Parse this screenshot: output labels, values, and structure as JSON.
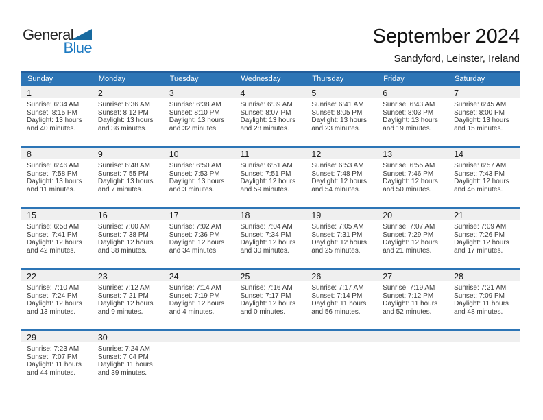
{
  "logo": {
    "general": "General",
    "blue": "Blue"
  },
  "title": "September 2024",
  "subtitle": "Sandyford, Leinster, Ireland",
  "colors": {
    "header_blue": "#2d75b6",
    "header_top_border": "#235e9c",
    "row_separator_blue": "#2d75b6",
    "day_band_gray": "#efefef",
    "logo_text_blue": "#1d7ac2",
    "logo_triangle_blue": "#17699f"
  },
  "weekday_headers": [
    "Sunday",
    "Monday",
    "Tuesday",
    "Wednesday",
    "Thursday",
    "Friday",
    "Saturday"
  ],
  "weeks": [
    [
      {
        "day": "1",
        "sunrise": "Sunrise: 6:34 AM",
        "sunset": "Sunset: 8:15 PM",
        "daylight1": "Daylight: 13 hours",
        "daylight2": "and 40 minutes."
      },
      {
        "day": "2",
        "sunrise": "Sunrise: 6:36 AM",
        "sunset": "Sunset: 8:12 PM",
        "daylight1": "Daylight: 13 hours",
        "daylight2": "and 36 minutes."
      },
      {
        "day": "3",
        "sunrise": "Sunrise: 6:38 AM",
        "sunset": "Sunset: 8:10 PM",
        "daylight1": "Daylight: 13 hours",
        "daylight2": "and 32 minutes."
      },
      {
        "day": "4",
        "sunrise": "Sunrise: 6:39 AM",
        "sunset": "Sunset: 8:07 PM",
        "daylight1": "Daylight: 13 hours",
        "daylight2": "and 28 minutes."
      },
      {
        "day": "5",
        "sunrise": "Sunrise: 6:41 AM",
        "sunset": "Sunset: 8:05 PM",
        "daylight1": "Daylight: 13 hours",
        "daylight2": "and 23 minutes."
      },
      {
        "day": "6",
        "sunrise": "Sunrise: 6:43 AM",
        "sunset": "Sunset: 8:03 PM",
        "daylight1": "Daylight: 13 hours",
        "daylight2": "and 19 minutes."
      },
      {
        "day": "7",
        "sunrise": "Sunrise: 6:45 AM",
        "sunset": "Sunset: 8:00 PM",
        "daylight1": "Daylight: 13 hours",
        "daylight2": "and 15 minutes."
      }
    ],
    [
      {
        "day": "8",
        "sunrise": "Sunrise: 6:46 AM",
        "sunset": "Sunset: 7:58 PM",
        "daylight1": "Daylight: 13 hours",
        "daylight2": "and 11 minutes."
      },
      {
        "day": "9",
        "sunrise": "Sunrise: 6:48 AM",
        "sunset": "Sunset: 7:55 PM",
        "daylight1": "Daylight: 13 hours",
        "daylight2": "and 7 minutes."
      },
      {
        "day": "10",
        "sunrise": "Sunrise: 6:50 AM",
        "sunset": "Sunset: 7:53 PM",
        "daylight1": "Daylight: 13 hours",
        "daylight2": "and 3 minutes."
      },
      {
        "day": "11",
        "sunrise": "Sunrise: 6:51 AM",
        "sunset": "Sunset: 7:51 PM",
        "daylight1": "Daylight: 12 hours",
        "daylight2": "and 59 minutes."
      },
      {
        "day": "12",
        "sunrise": "Sunrise: 6:53 AM",
        "sunset": "Sunset: 7:48 PM",
        "daylight1": "Daylight: 12 hours",
        "daylight2": "and 54 minutes."
      },
      {
        "day": "13",
        "sunrise": "Sunrise: 6:55 AM",
        "sunset": "Sunset: 7:46 PM",
        "daylight1": "Daylight: 12 hours",
        "daylight2": "and 50 minutes."
      },
      {
        "day": "14",
        "sunrise": "Sunrise: 6:57 AM",
        "sunset": "Sunset: 7:43 PM",
        "daylight1": "Daylight: 12 hours",
        "daylight2": "and 46 minutes."
      }
    ],
    [
      {
        "day": "15",
        "sunrise": "Sunrise: 6:58 AM",
        "sunset": "Sunset: 7:41 PM",
        "daylight1": "Daylight: 12 hours",
        "daylight2": "and 42 minutes."
      },
      {
        "day": "16",
        "sunrise": "Sunrise: 7:00 AM",
        "sunset": "Sunset: 7:38 PM",
        "daylight1": "Daylight: 12 hours",
        "daylight2": "and 38 minutes."
      },
      {
        "day": "17",
        "sunrise": "Sunrise: 7:02 AM",
        "sunset": "Sunset: 7:36 PM",
        "daylight1": "Daylight: 12 hours",
        "daylight2": "and 34 minutes."
      },
      {
        "day": "18",
        "sunrise": "Sunrise: 7:04 AM",
        "sunset": "Sunset: 7:34 PM",
        "daylight1": "Daylight: 12 hours",
        "daylight2": "and 30 minutes."
      },
      {
        "day": "19",
        "sunrise": "Sunrise: 7:05 AM",
        "sunset": "Sunset: 7:31 PM",
        "daylight1": "Daylight: 12 hours",
        "daylight2": "and 25 minutes."
      },
      {
        "day": "20",
        "sunrise": "Sunrise: 7:07 AM",
        "sunset": "Sunset: 7:29 PM",
        "daylight1": "Daylight: 12 hours",
        "daylight2": "and 21 minutes."
      },
      {
        "day": "21",
        "sunrise": "Sunrise: 7:09 AM",
        "sunset": "Sunset: 7:26 PM",
        "daylight1": "Daylight: 12 hours",
        "daylight2": "and 17 minutes."
      }
    ],
    [
      {
        "day": "22",
        "sunrise": "Sunrise: 7:10 AM",
        "sunset": "Sunset: 7:24 PM",
        "daylight1": "Daylight: 12 hours",
        "daylight2": "and 13 minutes."
      },
      {
        "day": "23",
        "sunrise": "Sunrise: 7:12 AM",
        "sunset": "Sunset: 7:21 PM",
        "daylight1": "Daylight: 12 hours",
        "daylight2": "and 9 minutes."
      },
      {
        "day": "24",
        "sunrise": "Sunrise: 7:14 AM",
        "sunset": "Sunset: 7:19 PM",
        "daylight1": "Daylight: 12 hours",
        "daylight2": "and 4 minutes."
      },
      {
        "day": "25",
        "sunrise": "Sunrise: 7:16 AM",
        "sunset": "Sunset: 7:17 PM",
        "daylight1": "Daylight: 12 hours",
        "daylight2": "and 0 minutes."
      },
      {
        "day": "26",
        "sunrise": "Sunrise: 7:17 AM",
        "sunset": "Sunset: 7:14 PM",
        "daylight1": "Daylight: 11 hours",
        "daylight2": "and 56 minutes."
      },
      {
        "day": "27",
        "sunrise": "Sunrise: 7:19 AM",
        "sunset": "Sunset: 7:12 PM",
        "daylight1": "Daylight: 11 hours",
        "daylight2": "and 52 minutes."
      },
      {
        "day": "28",
        "sunrise": "Sunrise: 7:21 AM",
        "sunset": "Sunset: 7:09 PM",
        "daylight1": "Daylight: 11 hours",
        "daylight2": "and 48 minutes."
      }
    ],
    [
      {
        "day": "29",
        "sunrise": "Sunrise: 7:23 AM",
        "sunset": "Sunset: 7:07 PM",
        "daylight1": "Daylight: 11 hours",
        "daylight2": "and 44 minutes."
      },
      {
        "day": "30",
        "sunrise": "Sunrise: 7:24 AM",
        "sunset": "Sunset: 7:04 PM",
        "daylight1": "Daylight: 11 hours",
        "daylight2": "and 39 minutes."
      },
      null,
      null,
      null,
      null,
      null
    ]
  ]
}
